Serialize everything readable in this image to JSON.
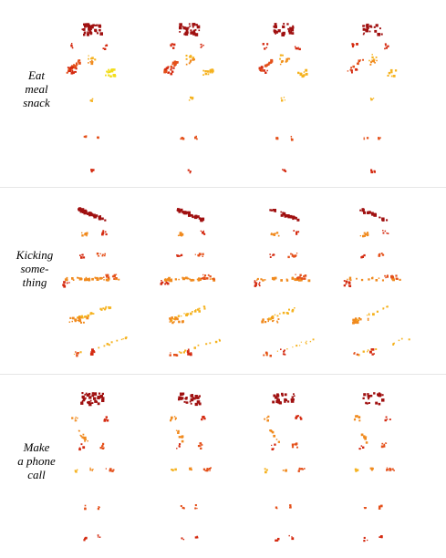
{
  "rows": [
    {
      "label_lines": [
        "Eat",
        "meal",
        "snack"
      ]
    },
    {
      "label_lines": [
        "Kicking",
        "some-",
        "thing"
      ]
    },
    {
      "label_lines": [
        "Make",
        "a phone",
        "call"
      ]
    }
  ],
  "colors": {
    "dark_red": "#a01010",
    "red": "#d42a10",
    "red_orange": "#e4501a",
    "orange": "#f08a1e",
    "amber": "#f5b21f",
    "yellow": "#f2dd1a"
  },
  "figure_type": "grid of sparse point-cloud human skeleton heatmaps, 3 action rows x 4 frames"
}
